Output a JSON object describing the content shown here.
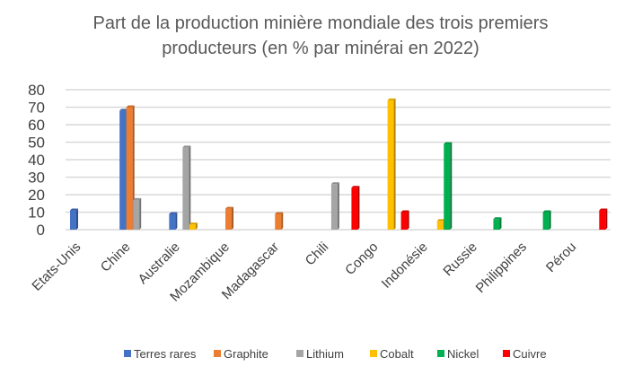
{
  "chart_data": {
    "type": "bar",
    "title": "Part de la production minière mondiale des trois premiers producteurs (en % par minérai en 2022)",
    "title_lines": [
      "Part de la production minière mondiale des trois premiers",
      "producteurs (en % par minérai en 2022)"
    ],
    "categories": [
      "Etats-Unis",
      "Chine",
      "Australie",
      "Mozambique",
      "Madagascar",
      "Chili",
      "Congo",
      "Indonésie",
      "Russie",
      "Philippines",
      "Pérou"
    ],
    "series": [
      {
        "name": "Terres rares",
        "color": "#4472C4",
        "values": [
          11,
          68,
          9,
          null,
          null,
          null,
          null,
          null,
          null,
          null,
          null
        ]
      },
      {
        "name": "Graphite",
        "color": "#ED7D31",
        "values": [
          null,
          70,
          null,
          12,
          9,
          null,
          null,
          null,
          null,
          null,
          null
        ]
      },
      {
        "name": "Lithium",
        "color": "#A5A5A5",
        "values": [
          null,
          17,
          47,
          null,
          null,
          26,
          null,
          null,
          null,
          null,
          null
        ]
      },
      {
        "name": "Cobalt",
        "color": "#FFC000",
        "values": [
          null,
          null,
          3,
          null,
          null,
          null,
          74,
          5,
          null,
          null,
          null
        ]
      },
      {
        "name": "Nickel",
        "color": "#00B050",
        "values": [
          null,
          null,
          null,
          null,
          null,
          null,
          null,
          49,
          6,
          10,
          null
        ]
      },
      {
        "name": "Cuivre",
        "color": "#FF0000",
        "values": [
          null,
          null,
          null,
          null,
          null,
          24,
          10,
          null,
          null,
          null,
          11
        ]
      }
    ],
    "yticks": [
      0,
      10,
      20,
      30,
      40,
      50,
      60,
      70,
      80
    ],
    "ylim": [
      0,
      80
    ],
    "xlabel": "",
    "ylabel": "",
    "grid": true,
    "legend": "bottom"
  }
}
